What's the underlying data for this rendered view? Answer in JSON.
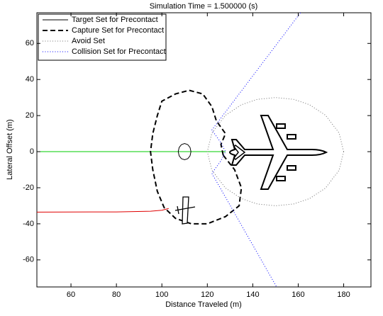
{
  "chart_data": {
    "type": "line",
    "title": "Simulation Time = 1.500000 (s)",
    "x_label": "Distance Traveled (m)",
    "y_label": "Lateral Offset (m)",
    "xlim": [
      45,
      192
    ],
    "ylim": [
      -75,
      77
    ],
    "xticks": [
      60,
      80,
      100,
      120,
      140,
      160,
      180
    ],
    "yticks": [
      -60,
      -40,
      -20,
      0,
      20,
      40,
      60
    ],
    "legend": "upper-left",
    "series": [
      {
        "name": "Target Set for Precontact",
        "color": "#000000",
        "style": "solid",
        "x": [
          112.8,
          112.4,
          111.4,
          110,
          108.6,
          107.6,
          107.2,
          107.6,
          108.6,
          110,
          111.4,
          112.4,
          112.8
        ],
        "y": [
          0,
          2.3,
          3.9,
          4.5,
          3.9,
          2.3,
          0,
          -2.3,
          -3.9,
          -4.5,
          -3.9,
          -2.3,
          0
        ]
      },
      {
        "name": "Capture Set for Precontact",
        "color": "#000000",
        "style": "dashed",
        "x": [
          127,
          132,
          135,
          134,
          128,
          120,
          113,
          106,
          101,
          98,
          96,
          95,
          96,
          98,
          100,
          106,
          112,
          118,
          122,
          124,
          128,
          126,
          127
        ],
        "y": [
          -2,
          -10,
          -20,
          -30,
          -36,
          -40,
          -40,
          -37,
          -31,
          -22,
          -10,
          0,
          10,
          20,
          28,
          32,
          34,
          32,
          25,
          17,
          10,
          4,
          -2
        ]
      },
      {
        "name": "Avoid Set",
        "color": "#707070",
        "style": "dotted",
        "x": [
          180,
          178,
          172,
          165,
          158,
          150,
          142,
          135,
          128,
          122,
          120,
          122,
          128,
          135,
          142,
          150,
          158,
          165,
          172,
          178,
          180
        ],
        "y": [
          0,
          10.3,
          20.2,
          26,
          29,
          30,
          29,
          26,
          20.2,
          10.3,
          0,
          -10.3,
          -20.2,
          -26,
          -29,
          -30,
          -29,
          -26,
          -20.2,
          -10.3,
          0
        ]
      },
      {
        "name": "Collision Set for Precontact",
        "color": "#0000ff",
        "style": "dotted",
        "x": [
          161,
          122,
          126,
          128,
          126,
          122,
          150.5
        ],
        "y": [
          77,
          12,
          5,
          0,
          -5,
          -12,
          -75
        ]
      }
    ],
    "trajectories": [
      {
        "color": "#00cc00",
        "x": [
          45,
          128
        ],
        "y": [
          0,
          0
        ]
      },
      {
        "color": "#e00000",
        "x": [
          45,
          80,
          95,
          100,
          103
        ],
        "y": [
          -33.5,
          -33.4,
          -33,
          -32.5,
          -31.5
        ]
      }
    ]
  }
}
